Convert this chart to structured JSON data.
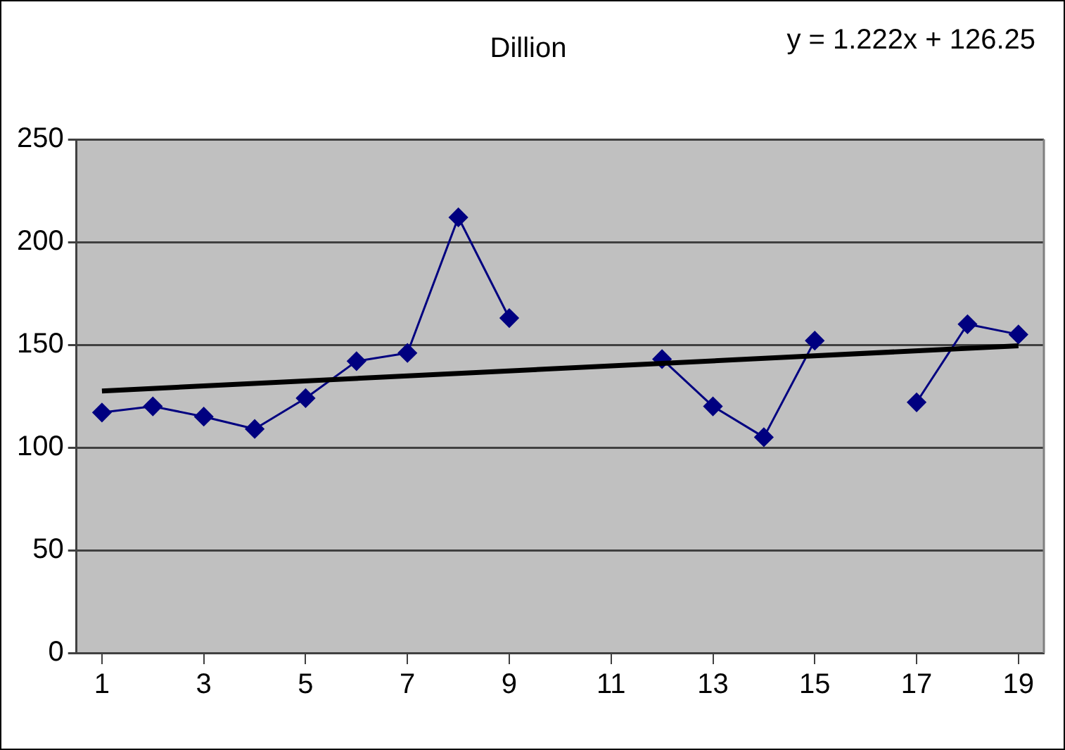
{
  "chart_data": {
    "type": "line",
    "title": "Dillion",
    "annotations": [
      "y = 1.222x + 126.25"
    ],
    "x": [
      1,
      2,
      3,
      4,
      5,
      6,
      7,
      8,
      9,
      10,
      11,
      12,
      13,
      14,
      15,
      16,
      17,
      18,
      19
    ],
    "xlim": [
      0.5,
      19.5
    ],
    "xticks": [
      1,
      3,
      5,
      7,
      9,
      11,
      13,
      15,
      17,
      19
    ],
    "ylim": [
      0,
      250
    ],
    "yticks": [
      0,
      50,
      100,
      150,
      200,
      250
    ],
    "grid": "y",
    "legend": false,
    "marker": "diamond",
    "line_style": "solid",
    "series": [
      {
        "color": "#000080",
        "values": [
          117,
          120,
          115,
          109,
          124,
          142,
          146,
          212,
          163,
          null,
          null,
          143,
          120,
          105,
          152,
          null,
          122,
          160,
          155
        ]
      },
      {
        "type": "line",
        "color": "#000000",
        "marker": "none",
        "x": [
          1,
          19
        ],
        "values": [
          127.5,
          149.5
        ]
      }
    ]
  }
}
